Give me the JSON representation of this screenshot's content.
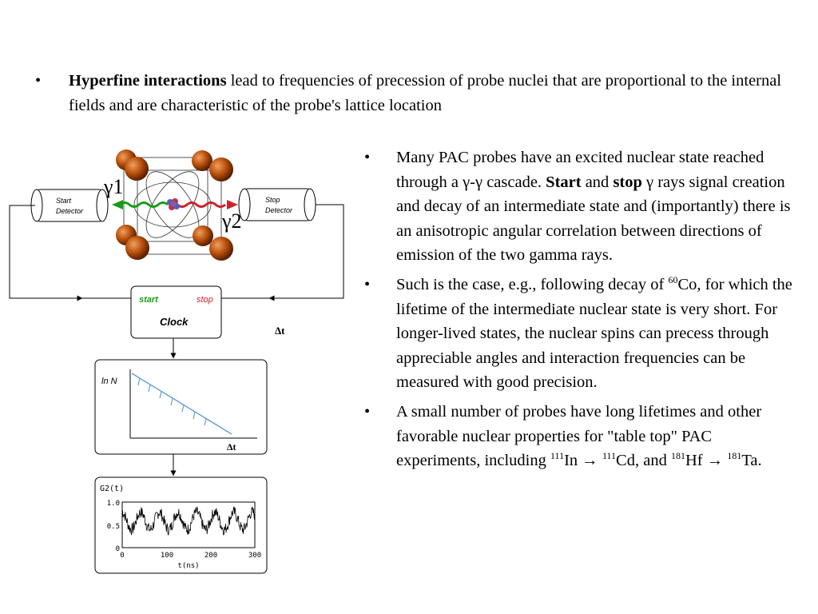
{
  "top_bullet": {
    "marker": "•",
    "bold": "Hyperfine interactions",
    "text": " lead to frequencies of precession of probe nuclei that are proportional to the internal fields and are characteristic of the probe's lattice location"
  },
  "right_bullets": {
    "marker": "•",
    "b1": {
      "t1": "Many PAC probes have an excited nuclear state reached through a γ-γ cascade.  ",
      "start": "Start",
      "t2": " and ",
      "stop": "stop",
      "t3": " γ rays signal creation and decay of an intermediate state and (importantly) there is an anisotropic angular correlation between directions of emission of the two gamma rays."
    },
    "b2": {
      "t1": "Such is the case, e.g., following decay of ",
      "sup1": "60",
      "t2": "Co, for which the lifetime of the intermediate nuclear state is very short. For longer-lived states, the nuclear spins can precess through appreciable angles and interaction frequencies can be measured with good precision."
    },
    "b3": {
      "t1": "A small number of probes have long lifetimes and other favorable nuclear properties for \"table top\" PAC experiments, including ",
      "sup1": "111",
      "t2": "In  → ",
      "sup2": "111",
      "t3": "Cd, and ",
      "sup3": "181",
      "t4": "Hf  → ",
      "sup4": "181",
      "t5": "Ta."
    }
  },
  "figure": {
    "gamma1": "γ1",
    "gamma2": "γ2",
    "start_detector": [
      "Start",
      "Detector"
    ],
    "stop_detector": [
      "Stop",
      "Detector"
    ],
    "clock": {
      "start": "start",
      "stop": "stop",
      "label": "Clock",
      "delta_t": "Δt"
    },
    "decay_plot": {
      "ylabel": "ln N",
      "xlabel": "Δt"
    },
    "g2_plot": {
      "ylabel": "G2(t)",
      "xlabel": "t(ns)",
      "yticks": [
        "1.0",
        "0.5",
        "0"
      ],
      "xticks": [
        "0",
        "100",
        "200",
        "300"
      ]
    }
  },
  "colors": {
    "start": "#1a9a1a",
    "stop": "#d0202a",
    "decay_line": "#4a90d0",
    "atom": "#b8500c"
  }
}
